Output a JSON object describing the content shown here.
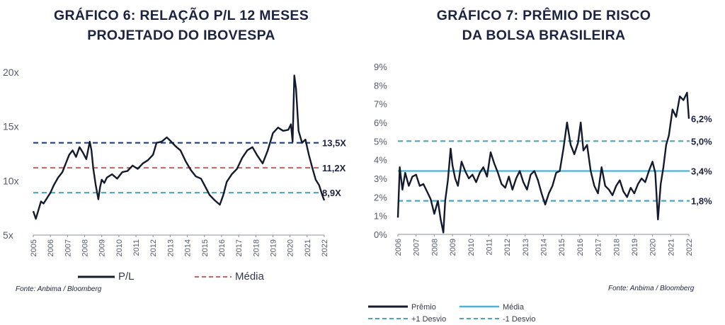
{
  "colors": {
    "title": "#1c2340",
    "series": "#141a2e",
    "axis_text": "#555b6e",
    "left_high": "#1f3c8c",
    "left_mean": "#c06a6a",
    "left_low": "#4aa6bf",
    "right_mean": "#4fb0d9",
    "right_band": "#4aa6bf"
  },
  "left": {
    "title_line1": "GRÁFICO 6: RELAÇÃO P/L 12 MESES",
    "title_line2": "PROJETADO DO IBOVESPA",
    "source": "Fonte: Anbima / Bloomberg"
  },
  "right": {
    "title_line1": "GRÁFICO 7: PRÊMIO DE RISCO",
    "title_line2": "DA BOLSA BRASILEIRA",
    "source": "Fonte: Anbima / Bloomberg"
  },
  "chart_data": [
    {
      "type": "line",
      "title": "GRÁFICO 6: RELAÇÃO P/L 12 MESES PROJETADO DO IBOVESPA",
      "ylim": [
        5,
        20
      ],
      "xlim": [
        2005,
        2022
      ],
      "y_ticks": [
        "5x",
        "10x",
        "15x",
        "20x"
      ],
      "x_ticks": [
        "2005",
        "2006",
        "2007",
        "2008",
        "2009",
        "2010",
        "2011",
        "2012",
        "2013",
        "2014",
        "2015",
        "2016",
        "2017",
        "2018",
        "2019",
        "2020",
        "2021",
        "2022"
      ],
      "series": [
        {
          "name": "P/L",
          "x": [
            2005.0,
            2005.15,
            2005.3,
            2005.45,
            2005.6,
            2005.8,
            2006.0,
            2006.2,
            2006.45,
            2006.7,
            2006.9,
            2007.1,
            2007.3,
            2007.5,
            2007.7,
            2007.9,
            2008.1,
            2008.3,
            2008.4,
            2008.5,
            2008.65,
            2008.8,
            2008.9,
            2009.0,
            2009.15,
            2009.3,
            2009.6,
            2009.9,
            2010.2,
            2010.5,
            2010.8,
            2011.1,
            2011.4,
            2011.7,
            2012.0,
            2012.2,
            2012.5,
            2012.8,
            2013.0,
            2013.3,
            2013.6,
            2013.9,
            2014.2,
            2014.5,
            2014.8,
            2015.0,
            2015.3,
            2015.6,
            2015.9,
            2016.1,
            2016.3,
            2016.6,
            2016.9,
            2017.2,
            2017.5,
            2017.8,
            2018.1,
            2018.4,
            2018.7,
            2019.0,
            2019.3,
            2019.6,
            2019.9,
            2020.05,
            2020.15,
            2020.25,
            2020.35,
            2020.5,
            2020.7,
            2020.9,
            2021.1,
            2021.3,
            2021.5,
            2021.7,
            2021.9,
            2022.0
          ],
          "values": [
            7.2,
            6.5,
            7.3,
            8.1,
            7.9,
            8.4,
            8.9,
            9.6,
            10.3,
            10.8,
            11.6,
            12.4,
            12.8,
            12.2,
            13.1,
            12.6,
            12.0,
            13.6,
            12.8,
            11.2,
            9.6,
            8.3,
            9.4,
            10.1,
            9.8,
            10.3,
            10.6,
            10.2,
            10.8,
            10.9,
            11.4,
            11.1,
            11.6,
            11.9,
            12.4,
            13.5,
            13.6,
            14.0,
            13.7,
            13.2,
            12.8,
            11.8,
            11.0,
            10.4,
            10.2,
            9.6,
            8.7,
            8.2,
            7.8,
            8.7,
            9.9,
            10.6,
            11.1,
            12.1,
            12.8,
            13.1,
            12.3,
            11.6,
            12.8,
            14.4,
            14.9,
            14.6,
            14.7,
            15.2,
            13.6,
            19.7,
            18.5,
            14.6,
            13.5,
            13.8,
            12.4,
            11.2,
            10.1,
            9.6,
            8.6,
            8.2
          ]
        },
        {
          "name": "Média",
          "values": [
            11.2
          ]
        }
      ],
      "reference_lines": [
        {
          "label": "13,5X",
          "value": 13.5,
          "style": "dashed"
        },
        {
          "label": "11,2X",
          "value": 11.2,
          "style": "dashed"
        },
        {
          "label": "8,9X",
          "value": 8.9,
          "style": "dashed"
        }
      ],
      "legend": {
        "position": "bottom",
        "items": [
          "P/L",
          "Média"
        ]
      },
      "grid": false
    },
    {
      "type": "line",
      "title": "GRÁFICO 7: PRÊMIO DE RISCO DA BOLSA BRASILEIRA",
      "ylim": [
        0,
        9
      ],
      "xlim": [
        2006,
        2022
      ],
      "y_ticks": [
        "0%",
        "1%",
        "2%",
        "3%",
        "4%",
        "5%",
        "6%",
        "7%",
        "8%",
        "9%"
      ],
      "x_ticks": [
        "2006",
        "2007",
        "2008",
        "2009",
        "2010",
        "2011",
        "2012",
        "2013",
        "2014",
        "2015",
        "2016",
        "2017",
        "2018",
        "2019",
        "2020",
        "2021",
        "2022"
      ],
      "series": [
        {
          "name": "Prêmio",
          "x": [
            2006.0,
            2006.1,
            2006.25,
            2006.4,
            2006.6,
            2006.8,
            2007.0,
            2007.2,
            2007.4,
            2007.6,
            2007.8,
            2008.0,
            2008.2,
            2008.35,
            2008.5,
            2008.6,
            2008.75,
            2008.9,
            2009.0,
            2009.15,
            2009.3,
            2009.5,
            2009.7,
            2009.9,
            2010.1,
            2010.3,
            2010.5,
            2010.7,
            2010.9,
            2011.1,
            2011.3,
            2011.5,
            2011.7,
            2011.9,
            2012.1,
            2012.3,
            2012.5,
            2012.7,
            2012.9,
            2013.1,
            2013.3,
            2013.5,
            2013.7,
            2013.9,
            2014.1,
            2014.3,
            2014.5,
            2014.7,
            2014.9,
            2015.1,
            2015.3,
            2015.5,
            2015.7,
            2015.9,
            2016.05,
            2016.2,
            2016.4,
            2016.6,
            2016.8,
            2017.0,
            2017.2,
            2017.4,
            2017.6,
            2017.8,
            2018.0,
            2018.2,
            2018.4,
            2018.6,
            2018.8,
            2019.0,
            2019.2,
            2019.4,
            2019.6,
            2019.8,
            2020.0,
            2020.15,
            2020.3,
            2020.45,
            2020.6,
            2020.75,
            2020.9,
            2021.1,
            2021.3,
            2021.5,
            2021.7,
            2021.9,
            2022.0
          ],
          "values": [
            0.9,
            3.6,
            2.4,
            3.3,
            2.6,
            3.1,
            3.2,
            2.6,
            2.7,
            2.3,
            1.9,
            1.1,
            1.8,
            0.8,
            0.1,
            1.8,
            2.9,
            4.6,
            3.7,
            3.0,
            2.6,
            3.9,
            3.4,
            3.0,
            3.2,
            2.8,
            3.3,
            3.6,
            3.1,
            4.4,
            3.8,
            3.3,
            2.7,
            2.5,
            3.1,
            2.4,
            3.0,
            3.4,
            2.8,
            2.4,
            3.2,
            3.4,
            2.9,
            2.2,
            1.6,
            2.2,
            2.6,
            3.3,
            3.4,
            4.6,
            6.0,
            4.8,
            4.3,
            4.9,
            6.0,
            4.5,
            4.8,
            3.4,
            2.6,
            2.2,
            3.6,
            2.6,
            2.4,
            2.1,
            2.6,
            2.9,
            2.3,
            2.0,
            2.5,
            2.2,
            2.7,
            3.0,
            2.8,
            3.4,
            3.9,
            3.3,
            0.8,
            2.7,
            3.6,
            4.8,
            5.3,
            6.7,
            6.3,
            7.4,
            7.2,
            7.6,
            6.2
          ]
        },
        {
          "name": "Média",
          "values": [
            3.4
          ]
        },
        {
          "name": "+1 Desvio",
          "values": [
            5.0
          ]
        },
        {
          "name": "-1 Desvio",
          "values": [
            1.8
          ]
        }
      ],
      "reference_lines": [
        {
          "label": "5,0%",
          "value": 5.0,
          "style": "dashed"
        },
        {
          "label": "3,4%",
          "value": 3.4,
          "style": "solid"
        },
        {
          "label": "1,8%",
          "value": 1.8,
          "style": "dashed"
        }
      ],
      "end_label": "6,2%",
      "legend": {
        "position": "bottom",
        "items": [
          "Prêmio",
          "Média",
          "+1 Desvio",
          "-1 Desvio"
        ]
      },
      "grid": false
    }
  ]
}
